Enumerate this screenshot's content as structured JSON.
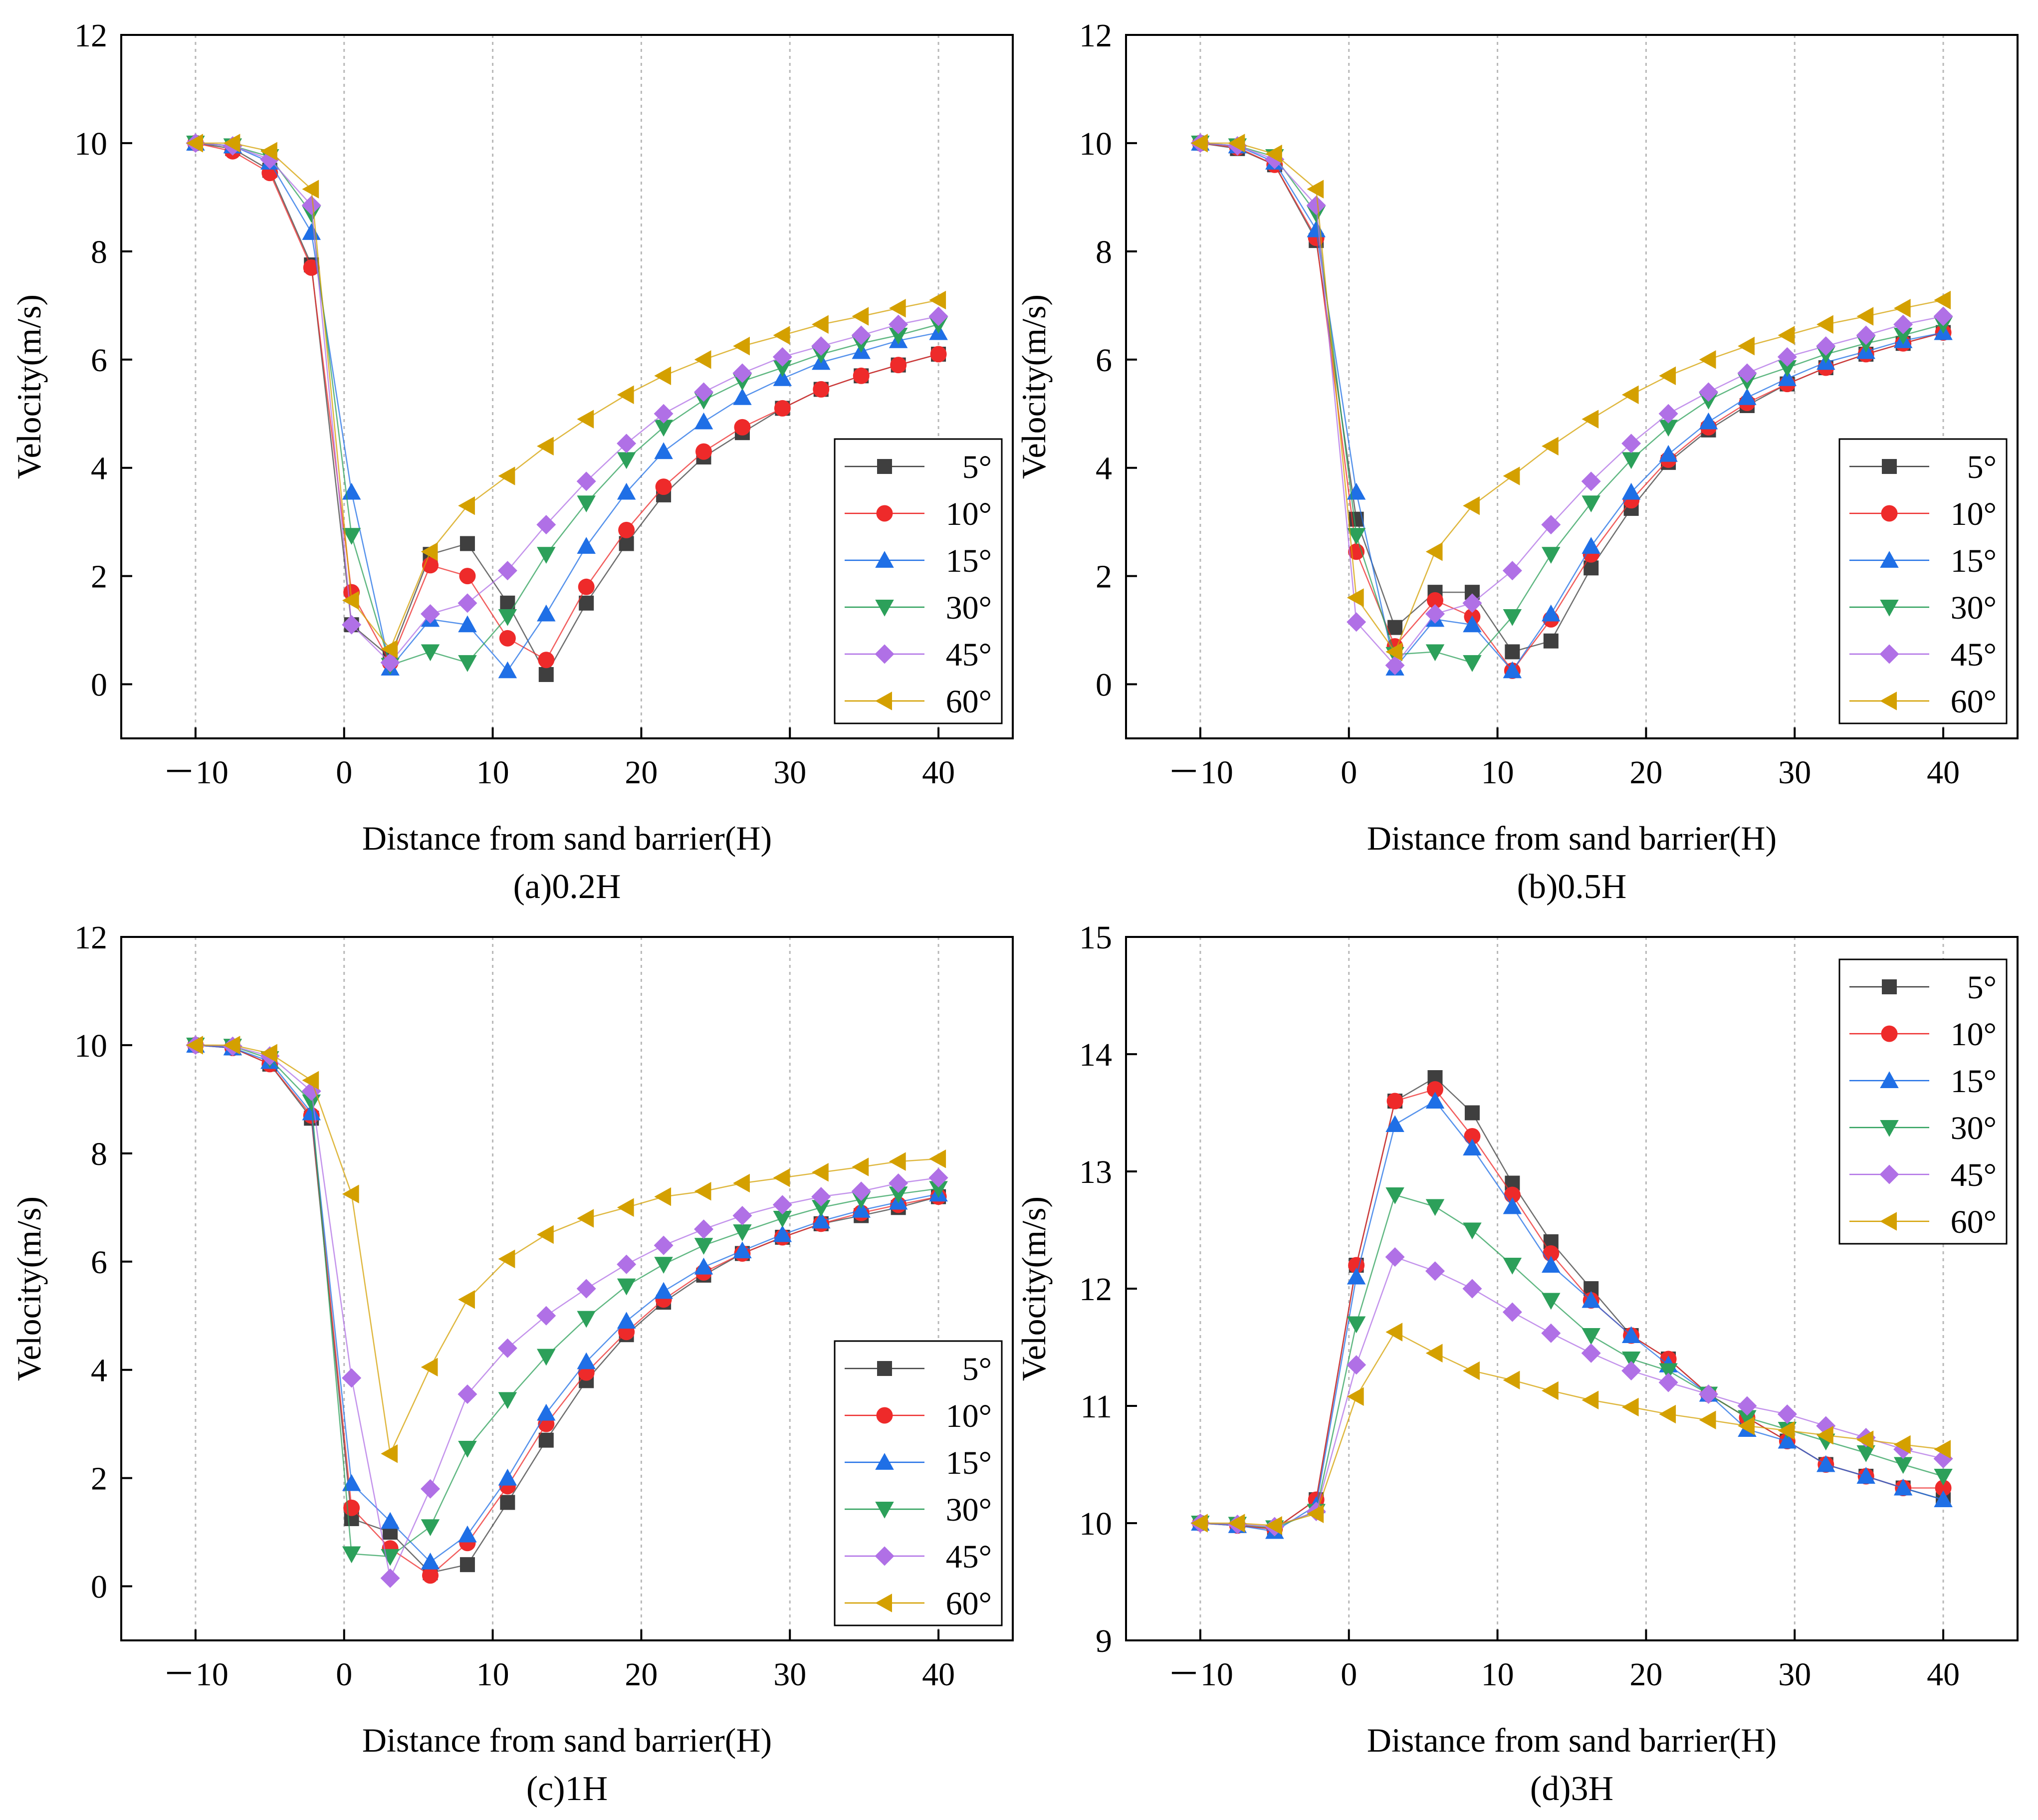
{
  "figure": {
    "colors": {
      "5°": "#3f3f3f",
      "10°": "#ee2a2a",
      "15°": "#1f6fe6",
      "30°": "#2ca05a",
      "45°": "#b070e6",
      "60°": "#d4a000"
    },
    "markers": {
      "5°": "square",
      "10°": "circle",
      "15°": "triangle-up",
      "30°": "triangle-down",
      "45°": "diamond",
      "60°": "triangle-left"
    }
  },
  "chart_data": [
    {
      "id": "a",
      "type": "line",
      "caption": "(a)0.2H",
      "xlabel": "Distance from sand barrier(H)",
      "ylabel": "Velocity(m/s)",
      "xlim": [
        -15,
        45
      ],
      "ylim": [
        -1,
        12
      ],
      "xticks": [
        -10,
        0,
        10,
        20,
        30,
        40
      ],
      "xtick_labels": [
        "－10",
        "0",
        "10",
        "20",
        "30",
        "40"
      ],
      "yticks": [
        0,
        2,
        4,
        6,
        8,
        10,
        12
      ],
      "ytick_labels": [
        "0",
        "2",
        "4",
        "6",
        "8",
        "10",
        "12"
      ],
      "grid": "vertical dotted at x ticks",
      "legend_position": "lower-right",
      "x": [
        -10,
        -7.5,
        -5,
        -2.2,
        0.5,
        3.1,
        5.8,
        8.3,
        11,
        13.6,
        16.3,
        19,
        21.5,
        24.2,
        26.8,
        29.5,
        32.1,
        34.8,
        37.3,
        40
      ],
      "series": [
        {
          "name": "5°",
          "values": [
            10,
            9.9,
            9.5,
            7.75,
            1.1,
            0.5,
            2.4,
            2.6,
            1.5,
            0.18,
            1.5,
            2.6,
            3.5,
            4.2,
            4.65,
            5.1,
            5.45,
            5.7,
            5.9,
            6.1
          ]
        },
        {
          "name": "10°",
          "values": [
            10,
            9.85,
            9.45,
            7.7,
            1.7,
            0.4,
            2.2,
            2.0,
            0.85,
            0.45,
            1.8,
            2.85,
            3.65,
            4.3,
            4.75,
            5.1,
            5.45,
            5.7,
            5.9,
            6.1
          ]
        },
        {
          "name": "15°",
          "values": [
            10,
            9.95,
            9.65,
            8.35,
            3.55,
            0.3,
            1.2,
            1.1,
            0.25,
            1.3,
            2.55,
            3.55,
            4.3,
            4.85,
            5.3,
            5.65,
            5.95,
            6.15,
            6.35,
            6.5
          ]
        },
        {
          "name": "30°",
          "values": [
            10,
            9.95,
            9.75,
            8.7,
            2.75,
            0.35,
            0.6,
            0.4,
            1.25,
            2.4,
            3.35,
            4.15,
            4.75,
            5.25,
            5.6,
            5.85,
            6.1,
            6.3,
            6.45,
            6.65
          ]
        },
        {
          "name": "45°",
          "values": [
            10,
            9.95,
            9.7,
            8.85,
            1.1,
            0.4,
            1.3,
            1.5,
            2.1,
            2.95,
            3.75,
            4.45,
            5.0,
            5.4,
            5.75,
            6.05,
            6.25,
            6.45,
            6.65,
            6.8
          ]
        },
        {
          "name": "60°",
          "values": [
            10,
            10.0,
            9.85,
            9.15,
            1.55,
            0.65,
            2.45,
            3.3,
            3.85,
            4.4,
            4.9,
            5.35,
            5.7,
            6.0,
            6.25,
            6.45,
            6.65,
            6.8,
            6.95,
            7.1
          ]
        }
      ]
    },
    {
      "id": "b",
      "type": "line",
      "caption": "(b)0.5H",
      "xlabel": "Distance from sand barrier(H)",
      "ylabel": "Velocity(m/s)",
      "xlim": [
        -15,
        45
      ],
      "ylim": [
        -1,
        12
      ],
      "xticks": [
        -10,
        0,
        10,
        20,
        30,
        40
      ],
      "xtick_labels": [
        "－10",
        "0",
        "10",
        "20",
        "30",
        "40"
      ],
      "yticks": [
        0,
        2,
        4,
        6,
        8,
        10,
        12
      ],
      "ytick_labels": [
        "0",
        "2",
        "4",
        "6",
        "8",
        "10",
        "12"
      ],
      "grid": "vertical dotted at x ticks",
      "legend_position": "lower-right",
      "x": [
        -10,
        -7.5,
        -5,
        -2.2,
        0.5,
        3.1,
        5.8,
        8.3,
        11,
        13.6,
        16.3,
        19,
        21.5,
        24.2,
        26.8,
        29.5,
        32.1,
        34.8,
        37.3,
        40
      ],
      "series": [
        {
          "name": "5°",
          "values": [
            10,
            9.9,
            9.6,
            8.2,
            3.05,
            1.05,
            1.7,
            1.7,
            0.6,
            0.8,
            2.15,
            3.25,
            4.1,
            4.7,
            5.15,
            5.55,
            5.85,
            6.1,
            6.3,
            6.5
          ]
        },
        {
          "name": "10°",
          "values": [
            10,
            9.92,
            9.6,
            8.25,
            2.45,
            0.7,
            1.55,
            1.25,
            0.25,
            1.2,
            2.4,
            3.4,
            4.15,
            4.75,
            5.2,
            5.55,
            5.85,
            6.1,
            6.3,
            6.5
          ]
        },
        {
          "name": "15°",
          "values": [
            10,
            9.95,
            9.65,
            8.4,
            3.55,
            0.3,
            1.2,
            1.1,
            0.25,
            1.3,
            2.55,
            3.55,
            4.25,
            4.85,
            5.3,
            5.65,
            5.95,
            6.15,
            6.35,
            6.5
          ]
        },
        {
          "name": "30°",
          "values": [
            10,
            9.95,
            9.75,
            8.7,
            2.75,
            0.55,
            0.6,
            0.4,
            1.25,
            2.4,
            3.35,
            4.15,
            4.75,
            5.25,
            5.6,
            5.85,
            6.1,
            6.3,
            6.45,
            6.65
          ]
        },
        {
          "name": "45°",
          "values": [
            10,
            9.95,
            9.7,
            8.85,
            1.15,
            0.35,
            1.3,
            1.5,
            2.1,
            2.95,
            3.75,
            4.45,
            5.0,
            5.4,
            5.75,
            6.05,
            6.25,
            6.45,
            6.65,
            6.8
          ]
        },
        {
          "name": "60°",
          "values": [
            10,
            10.0,
            9.8,
            9.15,
            1.6,
            0.6,
            2.45,
            3.3,
            3.85,
            4.4,
            4.9,
            5.35,
            5.7,
            6.0,
            6.25,
            6.45,
            6.65,
            6.8,
            6.95,
            7.1
          ]
        }
      ]
    },
    {
      "id": "c",
      "type": "line",
      "caption": "(c)1H",
      "xlabel": "Distance from sand barrier(H)",
      "ylabel": "Velocity(m/s)",
      "xlim": [
        -15,
        45
      ],
      "ylim": [
        -1,
        12
      ],
      "xticks": [
        -10,
        0,
        10,
        20,
        30,
        40
      ],
      "xtick_labels": [
        "－10",
        "0",
        "10",
        "20",
        "30",
        "40"
      ],
      "yticks": [
        0,
        2,
        4,
        6,
        8,
        10,
        12
      ],
      "ytick_labels": [
        "0",
        "2",
        "4",
        "6",
        "8",
        "10",
        "12"
      ],
      "grid": "vertical dotted at x ticks",
      "legend_position": "lower-right",
      "x": [
        -10,
        -7.5,
        -5,
        -2.2,
        0.5,
        3.1,
        5.8,
        8.3,
        11,
        13.6,
        16.3,
        19,
        21.5,
        24.2,
        26.8,
        29.5,
        32.1,
        34.8,
        37.3,
        40
      ],
      "series": [
        {
          "name": "5°",
          "values": [
            10,
            9.95,
            9.65,
            8.65,
            1.25,
            1.0,
            0.25,
            0.4,
            1.55,
            2.7,
            3.8,
            4.65,
            5.25,
            5.75,
            6.15,
            6.45,
            6.7,
            6.85,
            7.0,
            7.2
          ]
        },
        {
          "name": "10°",
          "values": [
            10,
            9.95,
            9.65,
            8.7,
            1.45,
            0.7,
            0.2,
            0.8,
            1.85,
            3.0,
            3.95,
            4.7,
            5.3,
            5.8,
            6.15,
            6.45,
            6.7,
            6.9,
            7.05,
            7.2
          ]
        },
        {
          "name": "15°",
          "values": [
            10,
            9.95,
            9.7,
            8.75,
            1.9,
            1.2,
            0.45,
            0.95,
            2.0,
            3.2,
            4.15,
            4.9,
            5.45,
            5.9,
            6.2,
            6.5,
            6.75,
            6.95,
            7.1,
            7.25
          ]
        },
        {
          "name": "30°",
          "values": [
            10,
            9.98,
            9.75,
            8.95,
            0.6,
            0.55,
            1.1,
            2.55,
            3.45,
            4.25,
            4.95,
            5.55,
            5.95,
            6.3,
            6.55,
            6.8,
            7.0,
            7.15,
            7.25,
            7.35
          ]
        },
        {
          "name": "45°",
          "values": [
            10,
            9.98,
            9.8,
            9.15,
            3.85,
            0.15,
            1.8,
            3.55,
            4.4,
            5.0,
            5.5,
            5.95,
            6.3,
            6.6,
            6.85,
            7.05,
            7.2,
            7.3,
            7.45,
            7.55
          ]
        },
        {
          "name": "60°",
          "values": [
            10,
            10.0,
            9.85,
            9.35,
            7.25,
            2.45,
            4.05,
            5.3,
            6.05,
            6.5,
            6.8,
            7.0,
            7.2,
            7.3,
            7.45,
            7.55,
            7.65,
            7.75,
            7.85,
            7.9
          ]
        }
      ]
    },
    {
      "id": "d",
      "type": "line",
      "caption": "(d)3H",
      "xlabel": "Distance from sand barrier(H)",
      "ylabel": "Velocity(m/s)",
      "xlim": [
        -15,
        45
      ],
      "ylim": [
        9,
        15
      ],
      "xticks": [
        -10,
        0,
        10,
        20,
        30,
        40
      ],
      "xtick_labels": [
        "－10",
        "0",
        "10",
        "20",
        "30",
        "40"
      ],
      "yticks": [
        9,
        10,
        11,
        12,
        13,
        14,
        15
      ],
      "ytick_labels": [
        "9",
        "10",
        "11",
        "12",
        "13",
        "14",
        "15"
      ],
      "grid": "vertical dotted at x ticks",
      "legend_position": "top-right",
      "x": [
        -10,
        -7.5,
        -5,
        -2.2,
        0.5,
        3.1,
        5.8,
        8.3,
        11,
        13.6,
        16.3,
        19,
        21.5,
        24.2,
        26.8,
        29.5,
        32.1,
        34.8,
        37.3,
        40
      ],
      "series": [
        {
          "name": "5°",
          "values": [
            10,
            9.98,
            9.95,
            10.2,
            12.2,
            13.6,
            13.8,
            13.5,
            12.9,
            12.4,
            12.0,
            11.6,
            11.4,
            11.1,
            10.9,
            10.7,
            10.5,
            10.4,
            10.3,
            10.2
          ]
        },
        {
          "name": "10°",
          "values": [
            10,
            9.98,
            9.95,
            10.2,
            12.2,
            13.6,
            13.7,
            13.3,
            12.8,
            12.3,
            11.9,
            11.6,
            11.4,
            11.1,
            10.9,
            10.7,
            10.5,
            10.4,
            10.3,
            10.3
          ]
        },
        {
          "name": "15°",
          "values": [
            10,
            9.98,
            9.93,
            10.15,
            12.1,
            13.4,
            13.6,
            13.2,
            12.7,
            12.2,
            11.9,
            11.6,
            11.35,
            11.1,
            10.8,
            10.7,
            10.5,
            10.4,
            10.3,
            10.2
          ]
        },
        {
          "name": "30°",
          "values": [
            10,
            9.99,
            9.96,
            10.1,
            11.7,
            12.8,
            12.7,
            12.5,
            12.2,
            11.9,
            11.6,
            11.4,
            11.3,
            11.1,
            10.9,
            10.8,
            10.7,
            10.6,
            10.5,
            10.4
          ]
        },
        {
          "name": "45°",
          "values": [
            10,
            9.99,
            9.97,
            10.1,
            11.35,
            12.27,
            12.15,
            12.0,
            11.8,
            11.62,
            11.45,
            11.3,
            11.2,
            11.1,
            11.0,
            10.93,
            10.83,
            10.73,
            10.63,
            10.55
          ]
        },
        {
          "name": "60°",
          "values": [
            10,
            10.0,
            9.98,
            10.08,
            11.08,
            11.63,
            11.45,
            11.3,
            11.22,
            11.13,
            11.05,
            10.99,
            10.93,
            10.88,
            10.83,
            10.79,
            10.75,
            10.71,
            10.67,
            10.63
          ]
        }
      ]
    }
  ]
}
